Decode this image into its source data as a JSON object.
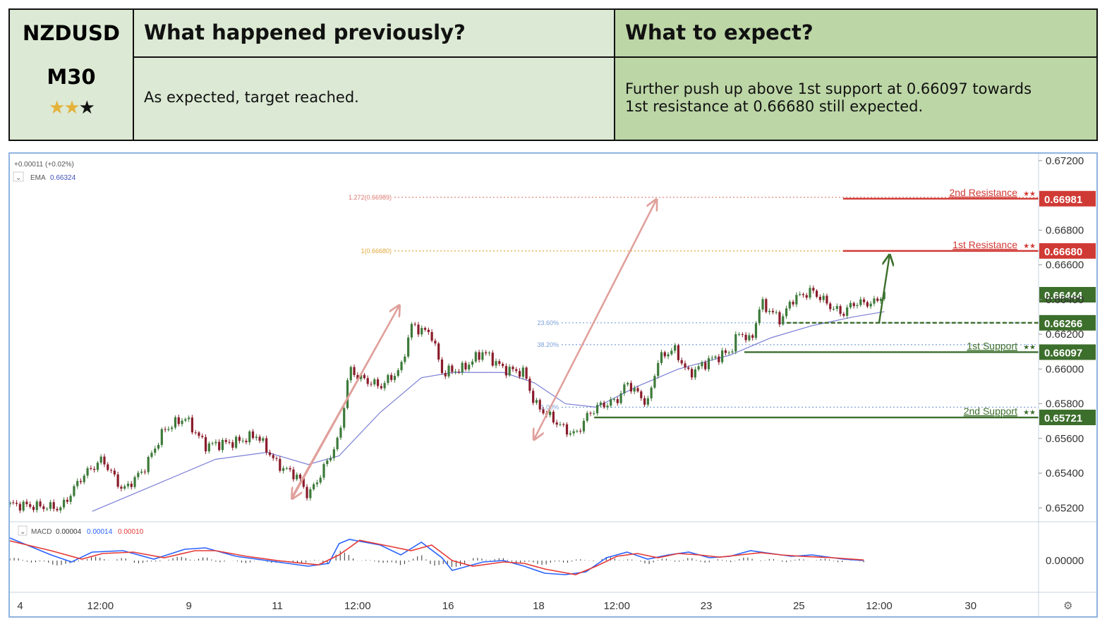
{
  "header": {
    "symbol": "NZDUSD",
    "timeframe": "M30",
    "rating": {
      "filled": 2,
      "total": 3
    },
    "prev_title": "What happened previously?",
    "prev_text": "As expected, target reached.",
    "expect_title": "What to expect?",
    "expect_text_line1": "Further push up above 1st support at 0.66097 towards",
    "expect_text_line2": "1st resistance at 0.66680 still expected."
  },
  "chart_info": {
    "change": "+0.00011 (+0.02%)",
    "ema_label": "EMA",
    "ema_value": "0.66324",
    "macd_label": "MACD",
    "macd_v1": "0.00004",
    "macd_v2": "0.00014",
    "macd_v3": "0.00010",
    "settings_icon": "gear-icon"
  },
  "chart_data": {
    "type": "candlestick",
    "ylim": [
      0.6512,
      0.6724
    ],
    "yticks": [
      "0.67200",
      "0.66800",
      "0.66600",
      "0.66400",
      "0.66200",
      "0.66000",
      "0.65800",
      "0.65600",
      "0.65400",
      "0.65200"
    ],
    "macd_tick": "0.00000",
    "xticks": [
      {
        "label": "4",
        "t": 0.01
      },
      {
        "label": "12:00",
        "t": 0.088
      },
      {
        "label": "9",
        "t": 0.174
      },
      {
        "label": "11",
        "t": 0.26
      },
      {
        "label": "12:00",
        "t": 0.338
      },
      {
        "label": "16",
        "t": 0.426
      },
      {
        "label": "18",
        "t": 0.514
      },
      {
        "label": "12:00",
        "t": 0.59
      },
      {
        "label": "23",
        "t": 0.677
      },
      {
        "label": "25",
        "t": 0.767
      },
      {
        "label": "12:00",
        "t": 0.845
      },
      {
        "label": "30",
        "t": 0.934
      }
    ],
    "price_path": [
      [
        0.0,
        0.6522
      ],
      [
        0.05,
        0.652
      ],
      [
        0.07,
        0.6538
      ],
      [
        0.09,
        0.6548
      ],
      [
        0.11,
        0.653
      ],
      [
        0.13,
        0.6542
      ],
      [
        0.15,
        0.6565
      ],
      [
        0.17,
        0.6572
      ],
      [
        0.19,
        0.6556
      ],
      [
        0.22,
        0.6558
      ],
      [
        0.24,
        0.6562
      ],
      [
        0.26,
        0.6545
      ],
      [
        0.28,
        0.6538
      ],
      [
        0.29,
        0.6527
      ],
      [
        0.3,
        0.6537
      ],
      [
        0.32,
        0.656
      ],
      [
        0.33,
        0.66
      ],
      [
        0.34,
        0.6595
      ],
      [
        0.36,
        0.659
      ],
      [
        0.38,
        0.66
      ],
      [
        0.39,
        0.6625
      ],
      [
        0.41,
        0.662
      ],
      [
        0.42,
        0.6598
      ],
      [
        0.44,
        0.66
      ],
      [
        0.45,
        0.6605
      ],
      [
        0.46,
        0.661
      ],
      [
        0.48,
        0.66
      ],
      [
        0.5,
        0.6598
      ],
      [
        0.51,
        0.658
      ],
      [
        0.52,
        0.6575
      ],
      [
        0.54,
        0.6565
      ],
      [
        0.55,
        0.6562
      ],
      [
        0.56,
        0.6572
      ],
      [
        0.57,
        0.6578
      ],
      [
        0.59,
        0.6582
      ],
      [
        0.6,
        0.6592
      ],
      [
        0.62,
        0.658
      ],
      [
        0.63,
        0.6605
      ],
      [
        0.645,
        0.6612
      ],
      [
        0.66,
        0.6597
      ],
      [
        0.68,
        0.6605
      ],
      [
        0.7,
        0.661
      ],
      [
        0.71,
        0.6622
      ],
      [
        0.72,
        0.6615
      ],
      [
        0.73,
        0.6638
      ],
      [
        0.75,
        0.6628
      ],
      [
        0.76,
        0.664
      ],
      [
        0.78,
        0.6645
      ],
      [
        0.8,
        0.6635
      ],
      [
        0.81,
        0.6632
      ],
      [
        0.82,
        0.6638
      ],
      [
        0.84,
        0.6638
      ],
      [
        0.85,
        0.6644
      ]
    ],
    "ema_path": [
      [
        0.08,
        0.6518
      ],
      [
        0.14,
        0.6533
      ],
      [
        0.2,
        0.6548
      ],
      [
        0.25,
        0.6552
      ],
      [
        0.29,
        0.6545
      ],
      [
        0.32,
        0.655
      ],
      [
        0.36,
        0.6575
      ],
      [
        0.4,
        0.6595
      ],
      [
        0.43,
        0.6598
      ],
      [
        0.48,
        0.6598
      ],
      [
        0.51,
        0.6592
      ],
      [
        0.54,
        0.658
      ],
      [
        0.57,
        0.6578
      ],
      [
        0.61,
        0.659
      ],
      [
        0.65,
        0.66
      ],
      [
        0.7,
        0.6608
      ],
      [
        0.74,
        0.6618
      ],
      [
        0.78,
        0.6625
      ],
      [
        0.82,
        0.663
      ],
      [
        0.85,
        0.6633
      ]
    ],
    "levels": [
      {
        "name": "2nd Resistance",
        "value": 0.66981,
        "label": "0.66981",
        "color": "#d03a35",
        "style": "solid",
        "start": 0.81
      },
      {
        "name": "1st Resistance",
        "value": 0.6668,
        "label": "0.66680",
        "color": "#d03a35",
        "style": "solid",
        "start": 0.81
      },
      {
        "name": "",
        "value": 0.66266,
        "label": "0.66266",
        "color": "#3c6e2c",
        "style": "dashed",
        "start": 0.755
      },
      {
        "name": "1st Support",
        "value": 0.66097,
        "label": "0.66097",
        "color": "#3c6e2c",
        "style": "solid",
        "start": 0.714
      },
      {
        "name": "2nd Support",
        "value": 0.65721,
        "label": "0.65721",
        "color": "#3c6e2c",
        "style": "solid",
        "start": 0.568
      }
    ],
    "current_price": {
      "value": 0.66444,
      "label": "0.66444",
      "color": "#3c6e2c"
    },
    "fib_lines": [
      {
        "label": "1.272(0.66989)",
        "value": 0.66989,
        "color": "#d9786e"
      },
      {
        "label": "1(0.66680)",
        "value": 0.6668,
        "color": "#e0a73a"
      },
      {
        "label": "23.60%",
        "value": 0.66266,
        "color": "#7aa0d8"
      },
      {
        "label": "38.20%",
        "value": 0.6614,
        "color": "#7aa0d8"
      },
      {
        "label": "1.00%",
        "value": 0.6578,
        "color": "#7aa0d8"
      }
    ],
    "arrows": [
      {
        "from": [
          0.274,
          0.6526
        ],
        "to": [
          0.378,
          0.6636
        ],
        "color": "#e0a09b"
      },
      {
        "from": [
          0.378,
          0.6636
        ],
        "to": [
          0.275,
          0.6526
        ],
        "color": "#e0a09b"
      },
      {
        "from": [
          0.51,
          0.656
        ],
        "to": [
          0.628,
          0.6697
        ],
        "color": "#e0a09b"
      },
      {
        "from": [
          0.628,
          0.6697
        ],
        "to": [
          0.51,
          0.656
        ],
        "color": "#e0a09b"
      },
      {
        "from": [
          0.845,
          0.66266
        ],
        "to": [
          0.855,
          0.6665
        ],
        "color": "#3c6e2c"
      }
    ],
    "macd_path": [
      [
        0.0,
        0.8
      ],
      [
        0.04,
        0.2
      ],
      [
        0.06,
        -0.05
      ],
      [
        0.08,
        0.3
      ],
      [
        0.11,
        0.35
      ],
      [
        0.14,
        0.05
      ],
      [
        0.17,
        0.4
      ],
      [
        0.19,
        0.45
      ],
      [
        0.22,
        0.15
      ],
      [
        0.25,
        0.0
      ],
      [
        0.27,
        -0.1
      ],
      [
        0.29,
        -0.2
      ],
      [
        0.31,
        -0.1
      ],
      [
        0.32,
        0.6
      ],
      [
        0.33,
        0.75
      ],
      [
        0.36,
        0.55
      ],
      [
        0.38,
        0.2
      ],
      [
        0.4,
        0.65
      ],
      [
        0.42,
        0.1
      ],
      [
        0.43,
        -0.35
      ],
      [
        0.46,
        -0.05
      ],
      [
        0.48,
        0.0
      ],
      [
        0.5,
        -0.2
      ],
      [
        0.52,
        -0.45
      ],
      [
        0.54,
        -0.5
      ],
      [
        0.56,
        -0.4
      ],
      [
        0.58,
        0.1
      ],
      [
        0.6,
        0.3
      ],
      [
        0.62,
        0.05
      ],
      [
        0.64,
        0.2
      ],
      [
        0.66,
        0.3
      ],
      [
        0.68,
        0.1
      ],
      [
        0.7,
        0.15
      ],
      [
        0.72,
        0.35
      ],
      [
        0.74,
        0.25
      ],
      [
        0.76,
        0.15
      ],
      [
        0.78,
        0.2
      ],
      [
        0.81,
        0.05
      ],
      [
        0.83,
        0.0
      ]
    ],
    "signal_path": [
      [
        0.0,
        0.7
      ],
      [
        0.04,
        0.35
      ],
      [
        0.07,
        0.05
      ],
      [
        0.09,
        0.25
      ],
      [
        0.12,
        0.3
      ],
      [
        0.15,
        0.1
      ],
      [
        0.18,
        0.35
      ],
      [
        0.2,
        0.35
      ],
      [
        0.23,
        0.15
      ],
      [
        0.26,
        0.0
      ],
      [
        0.28,
        -0.08
      ],
      [
        0.3,
        -0.15
      ],
      [
        0.32,
        0.2
      ],
      [
        0.34,
        0.72
      ],
      [
        0.37,
        0.5
      ],
      [
        0.39,
        0.35
      ],
      [
        0.41,
        0.55
      ],
      [
        0.43,
        0.0
      ],
      [
        0.45,
        -0.2
      ],
      [
        0.48,
        -0.05
      ],
      [
        0.5,
        -0.1
      ],
      [
        0.52,
        -0.3
      ],
      [
        0.55,
        -0.5
      ],
      [
        0.57,
        -0.2
      ],
      [
        0.59,
        0.15
      ],
      [
        0.61,
        0.25
      ],
      [
        0.63,
        0.1
      ],
      [
        0.65,
        0.25
      ],
      [
        0.67,
        0.2
      ],
      [
        0.69,
        0.12
      ],
      [
        0.71,
        0.2
      ],
      [
        0.73,
        0.28
      ],
      [
        0.75,
        0.2
      ],
      [
        0.77,
        0.15
      ],
      [
        0.8,
        0.1
      ],
      [
        0.83,
        0.02
      ]
    ]
  }
}
